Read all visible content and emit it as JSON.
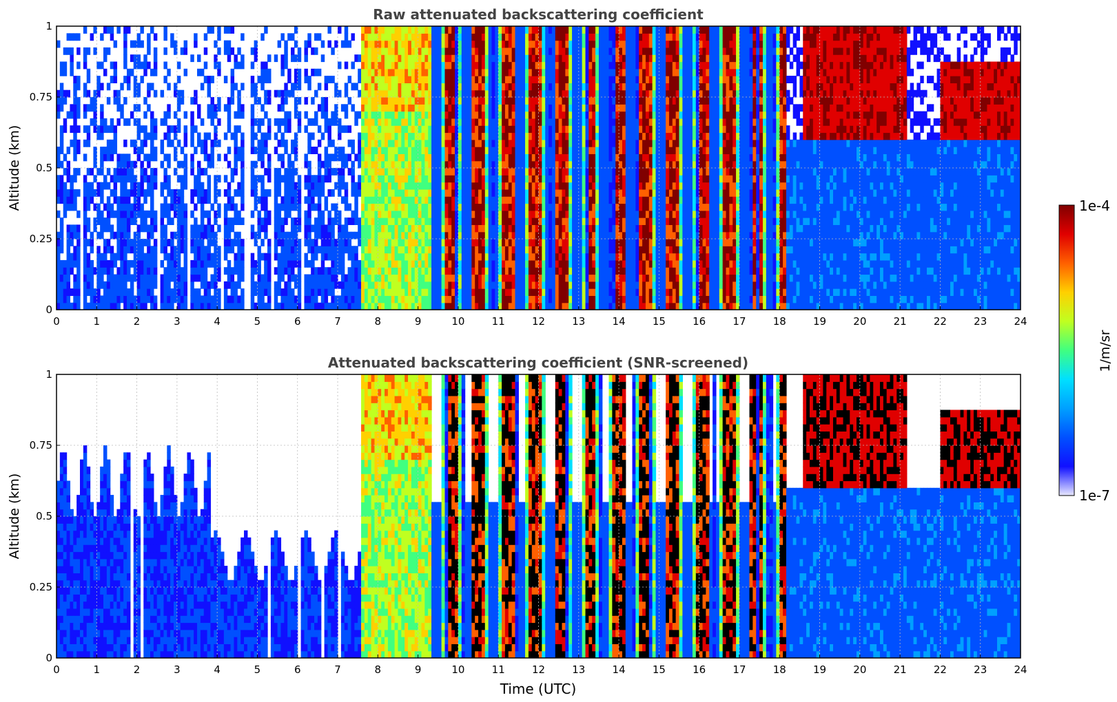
{
  "chart_data": [
    {
      "type": "heatmap",
      "title": "Raw attenuated backscattering coefficient",
      "xlabel": "",
      "ylabel": "Altitude (km)",
      "xlim": [
        0,
        24
      ],
      "ylim": [
        0,
        1
      ],
      "x_ticks": [
        "0",
        "1",
        "2",
        "3",
        "4",
        "5",
        "6",
        "7",
        "8",
        "9",
        "10",
        "11",
        "12",
        "13",
        "14",
        "15",
        "16",
        "17",
        "18",
        "19",
        "20",
        "21",
        "22",
        "23",
        "24"
      ],
      "y_ticks": [
        "0",
        "0.25",
        "0.5",
        "0.75",
        "1"
      ],
      "grid": true,
      "features": [
        {
          "hours": [
            0,
            7.6
          ],
          "description": "low signal noise, sparse blue/white"
        },
        {
          "hours": [
            7.6,
            9.3
          ],
          "description": "full-column cyan/green/yellow"
        },
        {
          "hours": [
            9.3,
            18.2
          ],
          "description": "vertical bands with red/orange cloud/rain streaks"
        },
        {
          "hours": [
            18.6,
            21.2
          ],
          "description": "dark-red cloud layer 0.6-1.0 km"
        },
        {
          "hours": [
            22,
            24
          ],
          "description": "dark-red cloud layer 0.6-0.85 km"
        }
      ]
    },
    {
      "type": "heatmap",
      "title": "Attenuated backscattering coefficient (SNR-screened)",
      "xlabel": "Time (UTC)",
      "ylabel": "Altitude (km)",
      "xlim": [
        0,
        24
      ],
      "ylim": [
        0,
        1
      ],
      "x_ticks": [
        "0",
        "1",
        "2",
        "3",
        "4",
        "5",
        "6",
        "7",
        "8",
        "9",
        "10",
        "11",
        "12",
        "13",
        "14",
        "15",
        "16",
        "17",
        "18",
        "19",
        "20",
        "21",
        "22",
        "23",
        "24"
      ],
      "y_ticks": [
        "0",
        "0.25",
        "0.5",
        "0.75",
        "1"
      ],
      "grid": true,
      "features": [
        {
          "hours": [
            0,
            3.8
          ],
          "description": "blue, screened above ~0.6-0.8 km"
        },
        {
          "hours": [
            3.8,
            7.6
          ],
          "description": "blue, screened above ~0.35-0.5 km"
        },
        {
          "hours": [
            7.6,
            9.3
          ],
          "description": "full-column cyan/green/yellow"
        },
        {
          "hours": [
            9.3,
            18.2
          ],
          "description": "vertical bands, saturated (black) cores"
        },
        {
          "hours": [
            18.6,
            24
          ],
          "description": "blue boundary layer with black-cored cloud 0.6-0.9 km"
        }
      ]
    }
  ],
  "colorbar": {
    "label": "1/m/sr",
    "max_label": "1e-4",
    "min_label": "1e-7",
    "colors": [
      "#e8e8ff",
      "#1010ff",
      "#0050ff",
      "#00a0ff",
      "#00e0ff",
      "#40ff80",
      "#c0ff20",
      "#ffd000",
      "#ff6000",
      "#e00000",
      "#800000"
    ]
  }
}
